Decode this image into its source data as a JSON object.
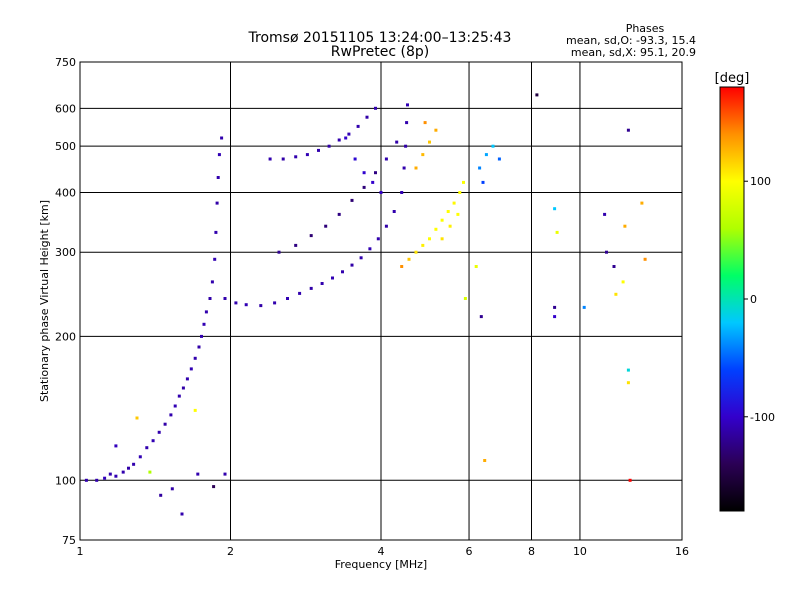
{
  "chart_data": {
    "type": "scatter",
    "title": "Tromsø 20151105 13:24:00–13:25:43",
    "subtitle": "RwPretec (8p)",
    "xlabel": "Frequency [MHz]",
    "ylabel": "Stationary phase Virtual Height [km]",
    "x_scale": "log",
    "y_scale": "log",
    "xlim": [
      1,
      16
    ],
    "ylim": [
      75,
      750
    ],
    "xticks": [
      1,
      2,
      4,
      6,
      8,
      10,
      16
    ],
    "yticks": [
      75,
      100,
      200,
      300,
      400,
      500,
      600,
      750
    ],
    "grid": true,
    "legend": {
      "title": "Phases",
      "line1": "mean, sd,O: -93.3, 15.4",
      "line2": "mean, sd,X:  95.1, 20.9"
    },
    "colorbar": {
      "label": "[deg]",
      "ticks": [
        100,
        0,
        -100
      ],
      "range": [
        -180,
        180
      ],
      "colormap": [
        "#000000",
        "#2b0055",
        "#3300cc",
        "#0040ff",
        "#00c8ff",
        "#00ff66",
        "#b0ff00",
        "#ffff00",
        "#ff9000",
        "#ff0000"
      ]
    },
    "series": [
      {
        "color_note": "phase colour",
        "points": [
          [
            1.03,
            100,
            -110
          ],
          [
            1.08,
            100,
            -110
          ],
          [
            1.12,
            101,
            -105
          ],
          [
            1.15,
            103,
            -110
          ],
          [
            1.18,
            102,
            -108
          ],
          [
            1.22,
            104,
            -110
          ],
          [
            1.25,
            106,
            -112
          ],
          [
            1.28,
            108,
            -110
          ],
          [
            1.32,
            112,
            -108
          ],
          [
            1.36,
            117,
            -110
          ],
          [
            1.4,
            121,
            -108
          ],
          [
            1.44,
            126,
            -110
          ],
          [
            1.48,
            131,
            -112
          ],
          [
            1.52,
            137,
            -110
          ],
          [
            1.55,
            143,
            -108
          ],
          [
            1.58,
            150,
            -110
          ],
          [
            1.61,
            156,
            -112
          ],
          [
            1.64,
            163,
            -110
          ],
          [
            1.67,
            171,
            -108
          ],
          [
            1.7,
            180,
            -110
          ],
          [
            1.73,
            190,
            -112
          ],
          [
            1.75,
            200,
            -110
          ],
          [
            1.77,
            212,
            -108
          ],
          [
            1.79,
            225,
            -110
          ],
          [
            1.82,
            240,
            -112
          ],
          [
            1.84,
            260,
            -110
          ],
          [
            1.86,
            290,
            -108
          ],
          [
            1.87,
            330,
            -110
          ],
          [
            1.88,
            380,
            -112
          ],
          [
            1.89,
            430,
            -110
          ],
          [
            1.9,
            480,
            -108
          ],
          [
            1.92,
            520,
            -110
          ],
          [
            1.95,
            240,
            -110
          ],
          [
            2.05,
            235,
            -110
          ],
          [
            2.15,
            233,
            -108
          ],
          [
            2.3,
            232,
            -112
          ],
          [
            2.45,
            235,
            -110
          ],
          [
            2.6,
            240,
            -108
          ],
          [
            2.75,
            246,
            -110
          ],
          [
            2.9,
            252,
            -112
          ],
          [
            3.05,
            258,
            -110
          ],
          [
            3.2,
            265,
            -108
          ],
          [
            3.35,
            273,
            -110
          ],
          [
            3.5,
            282,
            -112
          ],
          [
            3.65,
            292,
            -110
          ],
          [
            3.8,
            305,
            -108
          ],
          [
            3.95,
            320,
            -110
          ],
          [
            4.1,
            340,
            -112
          ],
          [
            4.25,
            365,
            -110
          ],
          [
            4.4,
            400,
            -108
          ],
          [
            4.45,
            450,
            -110
          ],
          [
            4.48,
            500,
            -112
          ],
          [
            4.5,
            560,
            -110
          ],
          [
            4.52,
            610,
            -108
          ],
          [
            2.4,
            470,
            -110
          ],
          [
            2.55,
            470,
            -112
          ],
          [
            2.7,
            475,
            -110
          ],
          [
            2.85,
            480,
            -108
          ],
          [
            3.0,
            490,
            -110
          ],
          [
            3.15,
            500,
            -112
          ],
          [
            3.3,
            515,
            -110
          ],
          [
            3.45,
            530,
            -108
          ],
          [
            3.6,
            550,
            -110
          ],
          [
            3.75,
            575,
            -112
          ],
          [
            3.9,
            600,
            -110
          ],
          [
            2.5,
            300,
            -120
          ],
          [
            2.7,
            310,
            -125
          ],
          [
            2.9,
            325,
            -130
          ],
          [
            3.1,
            340,
            -128
          ],
          [
            3.3,
            360,
            -125
          ],
          [
            3.5,
            385,
            -130
          ],
          [
            3.7,
            410,
            -128
          ],
          [
            3.9,
            440,
            -125
          ],
          [
            4.1,
            470,
            -110
          ],
          [
            4.3,
            510,
            -112
          ],
          [
            3.4,
            520,
            -100
          ],
          [
            3.55,
            470,
            -95
          ],
          [
            3.7,
            440,
            -98
          ],
          [
            3.85,
            420,
            -100
          ],
          [
            4.0,
            400,
            -102
          ],
          [
            4.4,
            280,
            140
          ],
          [
            4.55,
            290,
            120
          ],
          [
            4.7,
            300,
            110
          ],
          [
            4.85,
            310,
            105
          ],
          [
            5.0,
            320,
            100
          ],
          [
            5.15,
            335,
            100
          ],
          [
            5.3,
            350,
            98
          ],
          [
            5.45,
            365,
            100
          ],
          [
            5.6,
            380,
            102
          ],
          [
            5.75,
            400,
            100
          ],
          [
            5.85,
            420,
            98
          ],
          [
            5.3,
            320,
            110
          ],
          [
            5.5,
            340,
            105
          ],
          [
            5.7,
            360,
            100
          ],
          [
            4.7,
            450,
            130
          ],
          [
            4.85,
            480,
            125
          ],
          [
            5.0,
            510,
            120
          ],
          [
            5.15,
            540,
            130
          ],
          [
            4.9,
            560,
            140
          ],
          [
            6.3,
            450,
            -40
          ],
          [
            6.5,
            480,
            -30
          ],
          [
            6.7,
            500,
            -20
          ],
          [
            6.9,
            470,
            -50
          ],
          [
            6.4,
            420,
            -60
          ],
          [
            6.2,
            280,
            90
          ],
          [
            6.35,
            220,
            -120
          ],
          [
            6.45,
            110,
            130
          ],
          [
            5.9,
            240,
            80
          ],
          [
            8.2,
            640,
            -150
          ],
          [
            8.9,
            370,
            -20
          ],
          [
            9.0,
            330,
            90
          ],
          [
            8.9,
            230,
            -120
          ],
          [
            8.9,
            220,
            -100
          ],
          [
            10.2,
            230,
            -40
          ],
          [
            11.2,
            360,
            -110
          ],
          [
            11.3,
            300,
            -120
          ],
          [
            11.7,
            280,
            -120
          ],
          [
            11.8,
            245,
            110
          ],
          [
            12.2,
            260,
            100
          ],
          [
            12.5,
            540,
            -120
          ],
          [
            12.5,
            170,
            -10
          ],
          [
            12.5,
            160,
            110
          ],
          [
            12.6,
            100,
            180
          ],
          [
            12.3,
            340,
            130
          ],
          [
            13.3,
            380,
            130
          ],
          [
            13.5,
            290,
            140
          ],
          [
            1.3,
            135,
            120
          ],
          [
            1.18,
            118,
            -105
          ],
          [
            1.38,
            104,
            60
          ],
          [
            1.45,
            93,
            -115
          ],
          [
            1.53,
            96,
            -112
          ],
          [
            1.6,
            85,
            -110
          ],
          [
            1.72,
            103,
            -110
          ],
          [
            1.85,
            97,
            -140
          ],
          [
            1.95,
            103,
            -110
          ],
          [
            1.7,
            140,
            100
          ]
        ]
      }
    ]
  }
}
